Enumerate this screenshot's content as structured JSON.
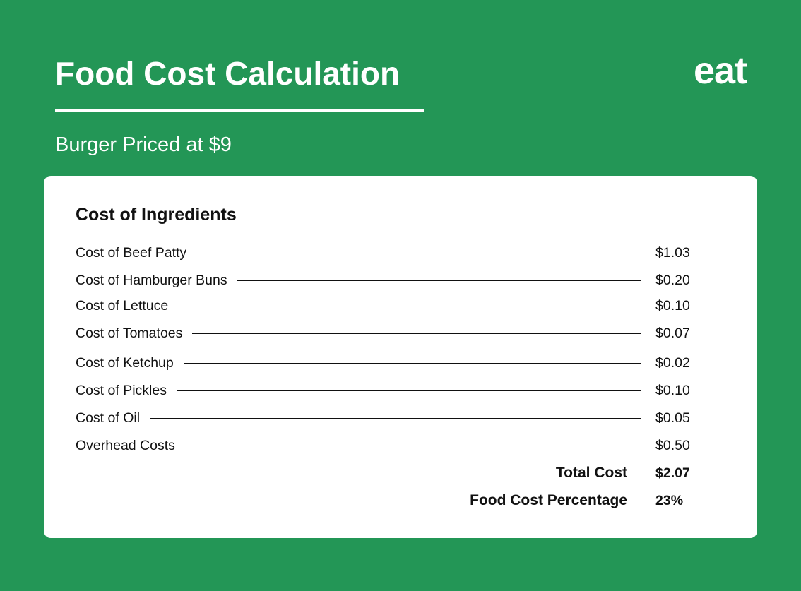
{
  "header": {
    "title": "Food Cost Calculation",
    "subtitle": "Burger Priced at $9",
    "logo_text": "eat"
  },
  "card": {
    "title": "Cost of Ingredients",
    "items": [
      {
        "label": "Cost of Beef Patty",
        "value": "$1.03"
      },
      {
        "label": "Cost of Hamburger Buns",
        "value": "$0.20"
      },
      {
        "label": "Cost of Lettuce",
        "value": "$0.10"
      },
      {
        "label": "Cost of Tomatoes",
        "value": "$0.07"
      },
      {
        "label": "Cost of Ketchup",
        "value": "$0.02"
      },
      {
        "label": "Cost of Pickles",
        "value": "$0.10"
      },
      {
        "label": "Cost of Oil",
        "value": "$0.05"
      },
      {
        "label": "Overhead Costs",
        "value": "$0.50"
      }
    ],
    "total": {
      "label": "Total Cost",
      "value": "$2.07"
    },
    "percentage": {
      "label": "Food Cost Percentage",
      "value": "23%"
    }
  },
  "colors": {
    "background": "#239656",
    "card": "#ffffff",
    "text": "#111111"
  }
}
